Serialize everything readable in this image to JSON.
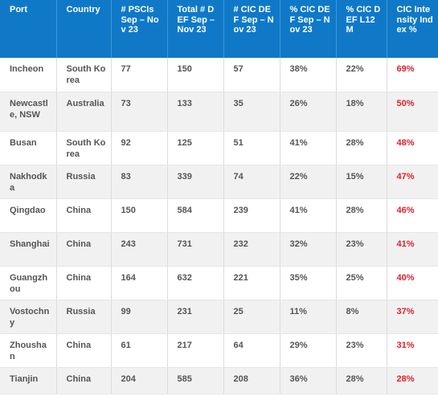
{
  "table": {
    "headers": [
      "Port",
      "Country",
      "# PSCIs Sep – Nov 23",
      "Total # DEF Sep – Nov 23",
      "# CIC DEF Sep – Nov 23",
      "% CIC DEF Sep – Nov 23",
      "% CIC DEF L12M",
      "CIC Intensity Index %"
    ],
    "rows": [
      [
        "Incheon",
        "South Korea",
        "77",
        "150",
        "57",
        "38%",
        "22%",
        "69%"
      ],
      [
        "Newcastle, NSW",
        "Australia",
        "73",
        "133",
        "35",
        "26%",
        "18%",
        "50%"
      ],
      [
        "Busan",
        "South Korea",
        "92",
        "125",
        "51",
        "41%",
        "28%",
        "48%"
      ],
      [
        "Nakhodka",
        "Russia",
        "83",
        "339",
        "74",
        "22%",
        "15%",
        "47%"
      ],
      [
        "Qingdao",
        "China",
        "150",
        "584",
        "239",
        "41%",
        "28%",
        "46%"
      ],
      [
        "Shanghai",
        "China",
        "243",
        "731",
        "232",
        "32%",
        "23%",
        "41%"
      ],
      [
        "Guangzhou",
        "China",
        "164",
        "632",
        "221",
        "35%",
        "25%",
        "40%"
      ],
      [
        "Vostochny",
        "Russia",
        "99",
        "231",
        "25",
        "11%",
        "8%",
        "37%"
      ],
      [
        "Zhoushan",
        "China",
        "61",
        "217",
        "64",
        "29%",
        "23%",
        "31%"
      ],
      [
        "Tianjin",
        "China",
        "204",
        "585",
        "208",
        "36%",
        "28%",
        "28%"
      ]
    ],
    "colors": {
      "header_bg": "#0f79c8",
      "header_text": "#ffffff",
      "body_text": "#555555",
      "index_text": "#e0202a",
      "stripe": "#f1f1f1"
    }
  }
}
